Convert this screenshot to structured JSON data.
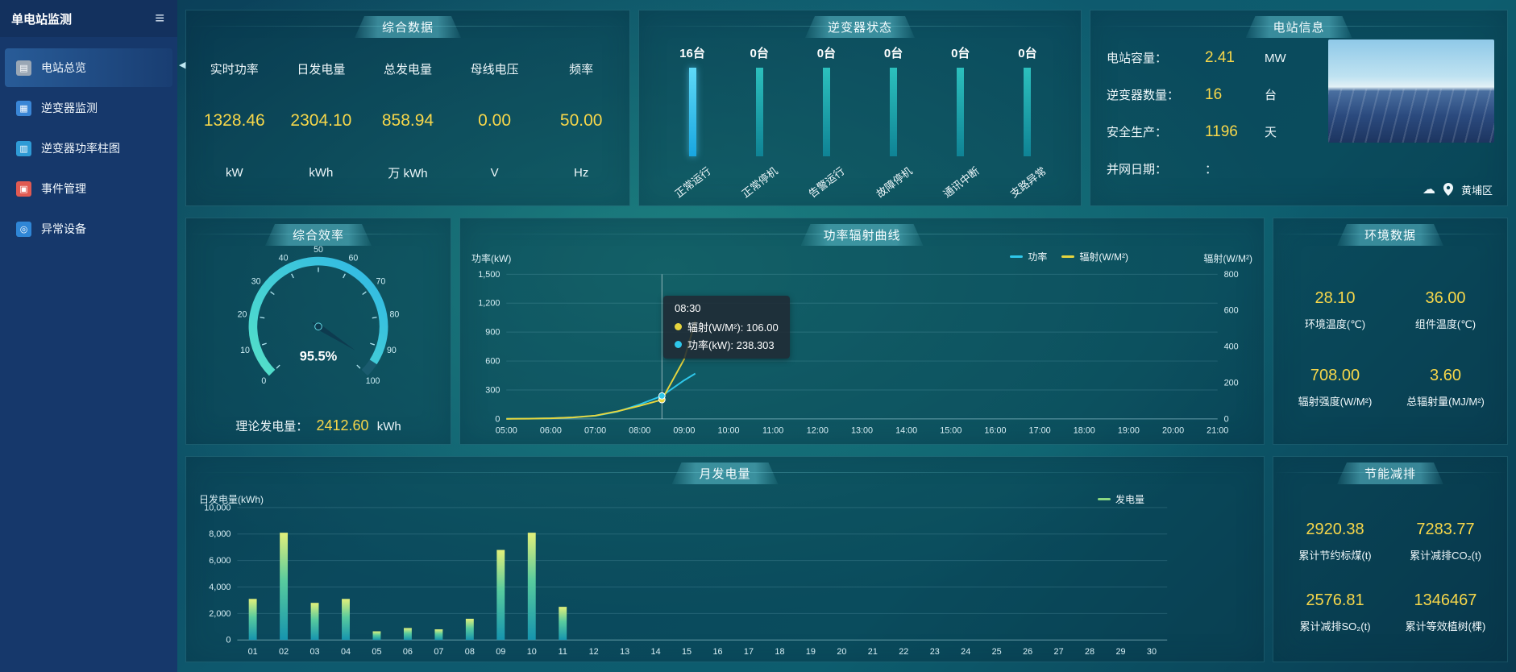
{
  "sidebar": {
    "title": "单电站监测",
    "items": [
      {
        "label": "电站总览",
        "active": true
      },
      {
        "label": "逆变器监测",
        "active": false
      },
      {
        "label": "逆变器功率柱图",
        "active": false
      },
      {
        "label": "事件管理",
        "active": false
      },
      {
        "label": "异常设备",
        "active": false
      }
    ]
  },
  "panels": {
    "summary": {
      "title": "综合数据",
      "metrics": [
        {
          "label": "实时功率",
          "value": "1328.46",
          "unit": "kW"
        },
        {
          "label": "日发电量",
          "value": "2304.10",
          "unit": "kWh"
        },
        {
          "label": "总发电量",
          "value": "858.94",
          "unit": "万 kWh"
        },
        {
          "label": "母线电压",
          "value": "0.00",
          "unit": "V"
        },
        {
          "label": "频率",
          "value": "50.00",
          "unit": "Hz"
        }
      ]
    },
    "inverter_status": {
      "title": "逆变器状态",
      "items": [
        {
          "count": "16台",
          "label": "正常运行"
        },
        {
          "count": "0台",
          "label": "正常停机"
        },
        {
          "count": "0台",
          "label": "告警运行"
        },
        {
          "count": "0台",
          "label": "故障停机"
        },
        {
          "count": "0台",
          "label": "通讯中断"
        },
        {
          "count": "0台",
          "label": "支路异常"
        }
      ]
    },
    "station_info": {
      "title": "电站信息",
      "rows": [
        {
          "label": "电站容量：",
          "value": "2.41",
          "unit": "MW"
        },
        {
          "label": "逆变器数量：",
          "value": "16",
          "unit": "台"
        },
        {
          "label": "安全生产：",
          "value": "1196",
          "unit": "天"
        },
        {
          "label": "并网日期：",
          "value": "：",
          "unit": ""
        }
      ],
      "location": "黄埔区"
    },
    "efficiency": {
      "title": "综合效率",
      "theory_label": "理论发电量：",
      "theory_value": "2412.60",
      "theory_unit": "kWh"
    },
    "power_curve": {
      "title": "功率辐射曲线",
      "tooltip": {
        "title": "08:30",
        "radiation_text": "辐射(W/M²): 106.00",
        "power_text": "功率(kW): 238.303"
      }
    },
    "environment": {
      "title": "环境数据",
      "metrics": [
        {
          "value": "28.10",
          "label": "环境温度(℃)"
        },
        {
          "value": "36.00",
          "label": "组件温度(℃)"
        },
        {
          "value": "708.00",
          "label": "辐射强度(W/M²)"
        },
        {
          "value": "3.60",
          "label": "总辐射量(MJ/M²)"
        }
      ]
    },
    "monthly": {
      "title": "月发电量"
    },
    "savings": {
      "title": "节能减排",
      "metrics": [
        {
          "value": "2920.38",
          "label": "累计节约标煤(t)"
        },
        {
          "value": "7283.77",
          "label": "累计减排CO₂(t)"
        },
        {
          "value": "2576.81",
          "label": "累计减排SO₂(t)"
        },
        {
          "value": "1346467",
          "label": "累计等效植树(棵)"
        }
      ]
    }
  },
  "chart_data": [
    {
      "id": "efficiency_gauge",
      "type": "gauge",
      "title": "综合效率",
      "min": 0,
      "max": 100,
      "tick_step": 10,
      "value": 95.5,
      "label": "95.5%"
    },
    {
      "id": "power_radiation",
      "type": "line",
      "title": "功率辐射曲线",
      "x_hours": [
        5,
        21
      ],
      "x_ticks": [
        "05:00",
        "06:00",
        "07:00",
        "08:00",
        "09:00",
        "10:00",
        "11:00",
        "12:00",
        "13:00",
        "14:00",
        "15:00",
        "16:00",
        "17:00",
        "18:00",
        "19:00",
        "20:00",
        "21:00"
      ],
      "left_axis": {
        "name": "功率(kW)",
        "min": 0,
        "max": 1500,
        "tick_labels": [
          "0",
          "300",
          "600",
          "900",
          "1,200",
          "1,500"
        ]
      },
      "right_axis": {
        "name": "辐射(W/M²)",
        "min": 0,
        "max": 800,
        "tick_labels": [
          "0",
          "200",
          "400",
          "600",
          "800"
        ]
      },
      "series": [
        {
          "name": "功率",
          "axis": "left",
          "color": "#2ec7ea",
          "points": [
            [
              "05:00",
              2
            ],
            [
              "05:30",
              3
            ],
            [
              "06:00",
              6
            ],
            [
              "06:30",
              14
            ],
            [
              "07:00",
              32
            ],
            [
              "07:30",
              75
            ],
            [
              "08:00",
              150
            ],
            [
              "08:30",
              238.303
            ],
            [
              "09:00",
              400
            ],
            [
              "09:15",
              470
            ]
          ]
        },
        {
          "name": "辐射(W/M²)",
          "axis": "right",
          "color": "#e6d53e",
          "points": [
            [
              "05:00",
              0
            ],
            [
              "05:30",
              1
            ],
            [
              "06:00",
              3
            ],
            [
              "06:30",
              8
            ],
            [
              "07:00",
              18
            ],
            [
              "07:30",
              42
            ],
            [
              "08:00",
              72
            ],
            [
              "08:30",
              106
            ],
            [
              "09:00",
              330
            ],
            [
              "09:15",
              540
            ]
          ]
        }
      ],
      "pointer": {
        "time": "08:30",
        "power": 238.303,
        "radiation": 106
      }
    },
    {
      "id": "monthly_generation",
      "type": "bar",
      "title": "月发电量",
      "ylabel": "日发电量(kWh)",
      "legend": "发电量",
      "ylim": [
        0,
        10000
      ],
      "y_tick_labels": [
        "0",
        "2,000",
        "4,000",
        "6,000",
        "8,000",
        "10,000"
      ],
      "categories": [
        "01",
        "02",
        "03",
        "04",
        "05",
        "06",
        "07",
        "08",
        "09",
        "10",
        "11",
        "12",
        "13",
        "14",
        "15",
        "16",
        "17",
        "18",
        "19",
        "20",
        "21",
        "22",
        "23",
        "24",
        "25",
        "26",
        "27",
        "28",
        "29",
        "30"
      ],
      "values": [
        3100,
        8100,
        2800,
        3100,
        650,
        900,
        800,
        1600,
        6800,
        8100,
        2500,
        0,
        0,
        0,
        0,
        0,
        0,
        0,
        0,
        0,
        0,
        0,
        0,
        0,
        0,
        0,
        0,
        0,
        0,
        0
      ]
    }
  ]
}
